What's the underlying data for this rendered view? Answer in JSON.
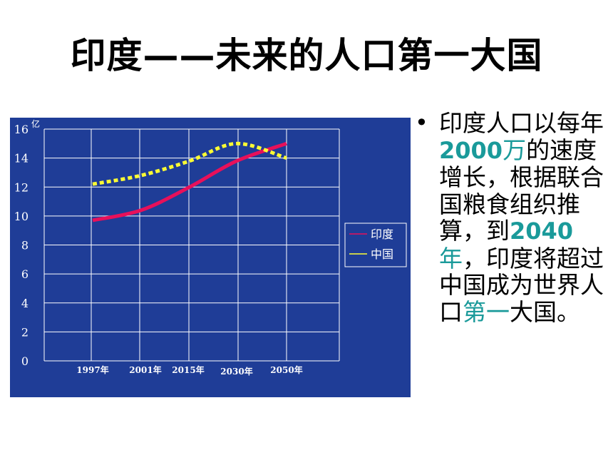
{
  "slide": {
    "title": "印度——未来的人口第一大国"
  },
  "bullet": {
    "symbol": "•",
    "segments": [
      {
        "text": "印度人口以每年",
        "style": "normal"
      },
      {
        "text": "2000",
        "style": "highlight-bold"
      },
      {
        "text": "万",
        "style": "highlight"
      },
      {
        "text": "的速度增长，根据联合国粮食组织推算，到",
        "style": "normal"
      },
      {
        "text": "2040",
        "style": "highlight-bold"
      },
      {
        "text": "年",
        "style": "highlight"
      },
      {
        "text": "，印度将超过中国成为世界人口",
        "style": "normal"
      },
      {
        "text": "第一",
        "style": "highlight"
      },
      {
        "text": "大国。",
        "style": "normal"
      }
    ]
  },
  "chart_data": {
    "type": "line",
    "unit_label": "亿",
    "x": [
      "1997年",
      "2001年",
      "2015年",
      "2030年",
      "2050年"
    ],
    "ylim": [
      0,
      16
    ],
    "yticks": [
      "0",
      "2",
      "4",
      "6",
      "8",
      "10",
      "12",
      "14",
      "16"
    ],
    "grid": true,
    "legend_position": "right",
    "series": [
      {
        "name": "印度",
        "color": "#e8105a",
        "style": "solid",
        "values": [
          9.7,
          10.4,
          12.0,
          13.8,
          15.0
        ]
      },
      {
        "name": "中国",
        "color": "#ffff33",
        "style": "dashed",
        "values": [
          12.2,
          12.8,
          13.8,
          15.0,
          14.0
        ]
      }
    ],
    "colors": {
      "background": "#1f3d97",
      "grid": "#ffffff",
      "text": "#ffffff"
    }
  }
}
